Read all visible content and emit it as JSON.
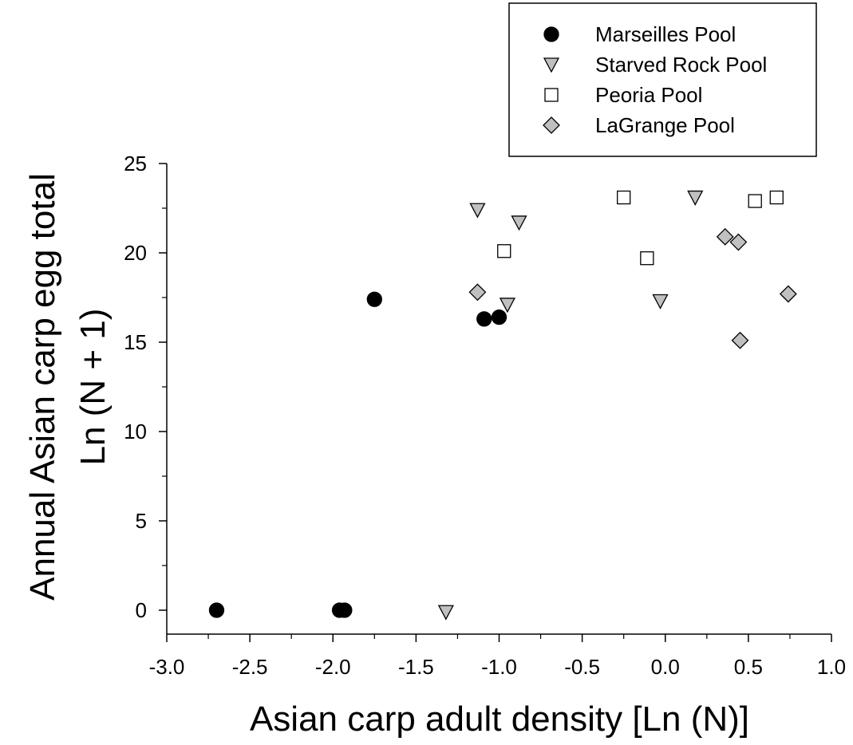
{
  "chart_data": {
    "type": "scatter",
    "xlabel": "Asian carp adult density [Ln (N)]",
    "ylabel_line1": "Annual Asian carp egg total",
    "ylabel_line2": "Ln (N + 1)",
    "xlim": [
      -3.0,
      1.0
    ],
    "ylim": [
      0,
      25
    ],
    "x_ticks": [
      "-3.0",
      "-2.5",
      "-2.0",
      "-1.5",
      "-1.0",
      "-0.5",
      "0.0",
      "0.5",
      "1.0"
    ],
    "y_ticks": [
      "0",
      "5",
      "10",
      "15",
      "20",
      "25"
    ],
    "grid": false,
    "legend_position": "top-right",
    "series": [
      {
        "name": "Marseilles Pool",
        "marker": "circle",
        "color": "#000000",
        "points": [
          {
            "x": -2.7,
            "y": 0.0
          },
          {
            "x": -1.96,
            "y": 0.0
          },
          {
            "x": -1.93,
            "y": 0.0
          },
          {
            "x": -1.75,
            "y": 17.4
          },
          {
            "x": -1.09,
            "y": 16.3
          },
          {
            "x": -1.0,
            "y": 16.4
          }
        ]
      },
      {
        "name": "Starved Rock Pool",
        "marker": "triangle-down",
        "color": "#c0c0c0",
        "points": [
          {
            "x": -1.32,
            "y": -0.1
          },
          {
            "x": -1.13,
            "y": 22.4
          },
          {
            "x": -0.95,
            "y": 17.1
          },
          {
            "x": -0.88,
            "y": 21.7
          },
          {
            "x": -0.03,
            "y": 17.3
          },
          {
            "x": 0.18,
            "y": 23.1
          }
        ]
      },
      {
        "name": "Peoria Pool",
        "marker": "square",
        "color": "#ffffff",
        "points": [
          {
            "x": -0.97,
            "y": 20.1
          },
          {
            "x": -0.25,
            "y": 23.1
          },
          {
            "x": -0.11,
            "y": 19.7
          },
          {
            "x": 0.54,
            "y": 22.9
          },
          {
            "x": 0.67,
            "y": 23.1
          }
        ]
      },
      {
        "name": "LaGrange Pool",
        "marker": "diamond",
        "color": "#c0c0c0",
        "points": [
          {
            "x": -1.13,
            "y": 17.8
          },
          {
            "x": 0.36,
            "y": 20.9
          },
          {
            "x": 0.44,
            "y": 20.6
          },
          {
            "x": 0.45,
            "y": 15.1
          },
          {
            "x": 0.74,
            "y": 17.7
          }
        ]
      }
    ]
  }
}
